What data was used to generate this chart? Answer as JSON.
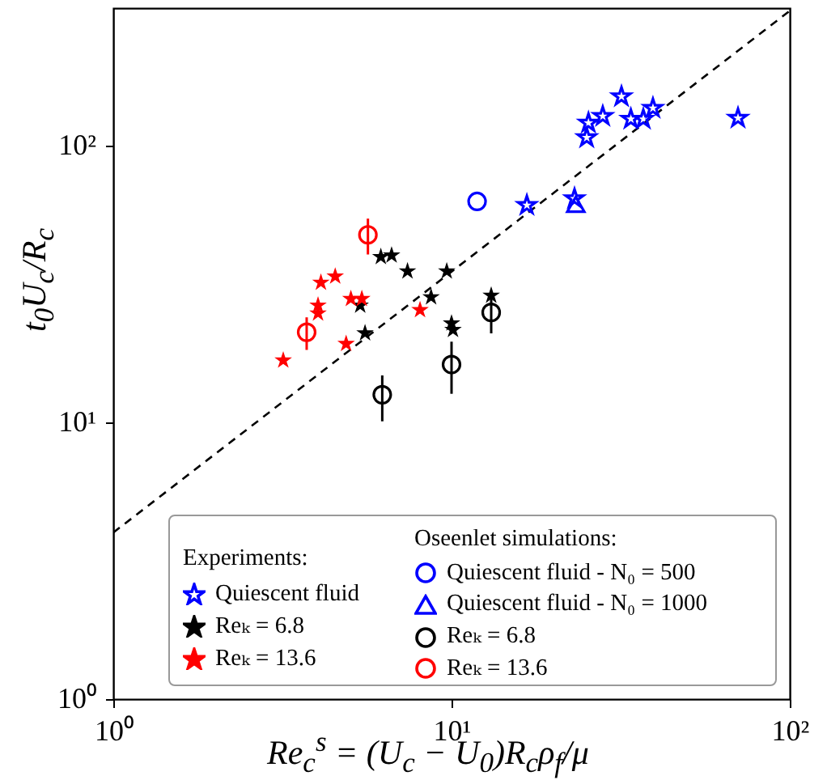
{
  "chart_data": {
    "type": "scatter",
    "xlabel": "Re$_{c}$$^{s}$ = (U$_{c}$ − U$_{0}$)R$_{c}$ρ$_{f}$/μ",
    "ylabel": "t$_{0}$U$_{c}$/R$_{c}$",
    "log": "xy",
    "xlim": [
      1,
      100
    ],
    "ylim": [
      1,
      315
    ],
    "xticks": [
      {
        "value": 1,
        "label": "10⁰"
      },
      {
        "value": 10,
        "label": "10¹"
      },
      {
        "value": 100,
        "label": "10²"
      }
    ],
    "yticks": [
      {
        "value": 1,
        "label": "10⁰"
      },
      {
        "value": 10,
        "label": "10¹"
      },
      {
        "value": 100,
        "label": "10²"
      }
    ],
    "grid": false,
    "legend": "bottom right",
    "annotations": [
      "Experiments:",
      "Oseenlet simulations:"
    ],
    "series": [
      {
        "type": "line",
        "color": "#000000",
        "line_style": "dashed",
        "x": [
          1,
          100
        ],
        "values": [
          4,
          308
        ]
      },
      {
        "name": "Quiescent fluid",
        "color": "#0000ff",
        "marker": "star",
        "x": [
          31.8,
          25.4,
          28,
          25.1,
          33.9,
          36.9,
          39.4,
          70.3,
          16.7,
          23.1
        ],
        "values": [
          152,
          122,
          129,
          108,
          126,
          126,
          138,
          127,
          61.5,
          65
        ]
      },
      {
        "name": "Reₖ = 6.8",
        "color": "#000000",
        "marker": "star",
        "x": [
          5.37,
          5.55,
          6.18,
          6.65,
          7.41,
          9.68,
          8.7,
          10,
          10.1,
          13.1
        ],
        "values": [
          26.7,
          21.2,
          40,
          40.5,
          35.5,
          35.5,
          28.6,
          23,
          21.8,
          29
        ]
      },
      {
        "name": "Reₖ = 13.6",
        "color": "#ff0000",
        "marker": "star",
        "x": [
          3.18,
          4.03,
          4.03,
          4.11,
          4.53,
          5.04,
          5.43,
          4.88,
          8.07
        ],
        "values": [
          16.9,
          25,
          26.7,
          32.3,
          34,
          28.2,
          28.2,
          19.4,
          25.7
        ]
      },
      {
        "name": "Quiescent fluid - N₀ = 500",
        "color": "#0000ff",
        "marker": "circle",
        "x": [
          11.9
        ],
        "values": [
          63
        ]
      },
      {
        "name": "Quiescent fluid - N₀ = 1000",
        "color": "#0000ff",
        "marker": "triangle",
        "x": [
          23.3
        ],
        "values": [
          61.5
        ]
      },
      {
        "name": "Reₖ = 6.8",
        "color": "#000000",
        "marker": "circle",
        "x": [
          6.24,
          10,
          13.1
        ],
        "values": [
          12.6,
          16.2,
          25
        ],
        "errors": [
          [
            10.1,
            14.8
          ],
          [
            12.7,
            19.6
          ],
          [
            21,
            29.8
          ]
        ]
      },
      {
        "name": "Reₖ = 13.6",
        "color": "#ff0000",
        "marker": "circle",
        "x": [
          5.66,
          3.73
        ],
        "values": [
          47.7,
          21.2
        ],
        "errors": [
          [
            40.5,
            54.6
          ],
          [
            18.3,
            24
          ]
        ]
      }
    ]
  }
}
